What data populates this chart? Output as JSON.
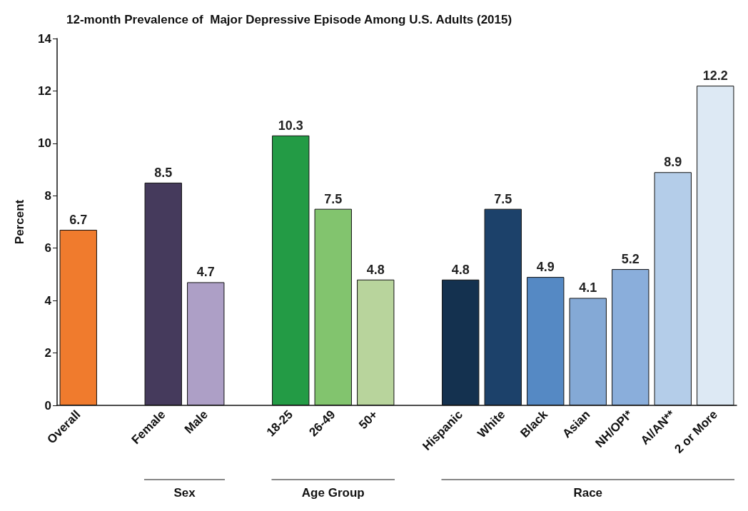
{
  "chart_data": {
    "type": "bar",
    "title": "12-month Prevalence of  Major Depressive Episode Among U.S. Adults (2015)",
    "ylabel": "Percent",
    "categories": [
      "Overall",
      null,
      "Female",
      "Male",
      null,
      "18-25",
      "26-49",
      "50+",
      null,
      "Hispanic",
      "White",
      "Black",
      "Asian",
      "NH/OPI*",
      "AI/AN**",
      "2 or More"
    ],
    "values": [
      6.7,
      null,
      8.5,
      4.7,
      null,
      10.3,
      7.5,
      4.8,
      null,
      4.8,
      7.5,
      4.9,
      4.1,
      5.2,
      8.9,
      12.2
    ],
    "colors": [
      "#f07b2d",
      null,
      "#453a5c",
      "#ad9fc6",
      null,
      "#239b45",
      "#82c46e",
      "#b8d49c",
      null,
      "#14314f",
      "#1c416a",
      "#5589c4",
      "#84a9d6",
      "#8aaedb",
      "#b4cde9",
      "#dde9f4"
    ],
    "ylim": [
      0,
      14
    ],
    "yticks": [
      0,
      2,
      4,
      6,
      8,
      10,
      12,
      14
    ],
    "grid": false,
    "data_labels": true,
    "annotations": [
      "Sex",
      "Age Group",
      "Race"
    ]
  }
}
